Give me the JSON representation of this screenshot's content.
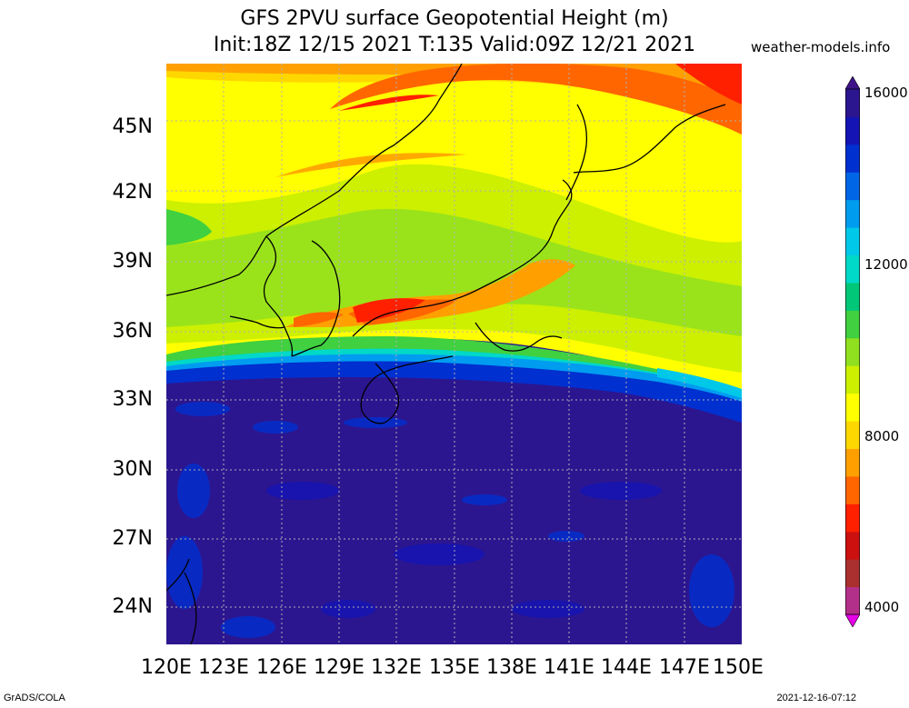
{
  "header": {
    "title_line1": "GFS 2PVU surface Geopotential Height (m)",
    "title_line2": "Init:18Z 12/15 2021 T:135 Valid:09Z 12/21 2021",
    "site": "weather-models.info"
  },
  "axes": {
    "lat_labels": [
      "45N",
      "42N",
      "39N",
      "36N",
      "33N",
      "30N",
      "27N",
      "24N"
    ],
    "lon_labels": [
      "120E",
      "123E",
      "126E",
      "129E",
      "132E",
      "135E",
      "138E",
      "141E",
      "144E",
      "147E",
      "150E"
    ],
    "lat_range": [
      22.5,
      47.5
    ],
    "lon_range": [
      120,
      150
    ]
  },
  "colorbar": {
    "labels": [
      "16000",
      "12000",
      "8000",
      "4000"
    ],
    "colors": [
      "#e600e6",
      "#b3308a",
      "#aa3030",
      "#cc1010",
      "#ff2000",
      "#ff6600",
      "#ffa000",
      "#ffd700",
      "#ffff00",
      "#ccf000",
      "#90e020",
      "#40d040",
      "#00c878",
      "#00d8c8",
      "#00c8e8",
      "#009cf0",
      "#0066e6",
      "#0030d0",
      "#1414b4",
      "#2c1690",
      "#3e1488"
    ]
  },
  "footer": {
    "left": "GrADS/COLA",
    "right": "2021-12-16-07:12"
  }
}
